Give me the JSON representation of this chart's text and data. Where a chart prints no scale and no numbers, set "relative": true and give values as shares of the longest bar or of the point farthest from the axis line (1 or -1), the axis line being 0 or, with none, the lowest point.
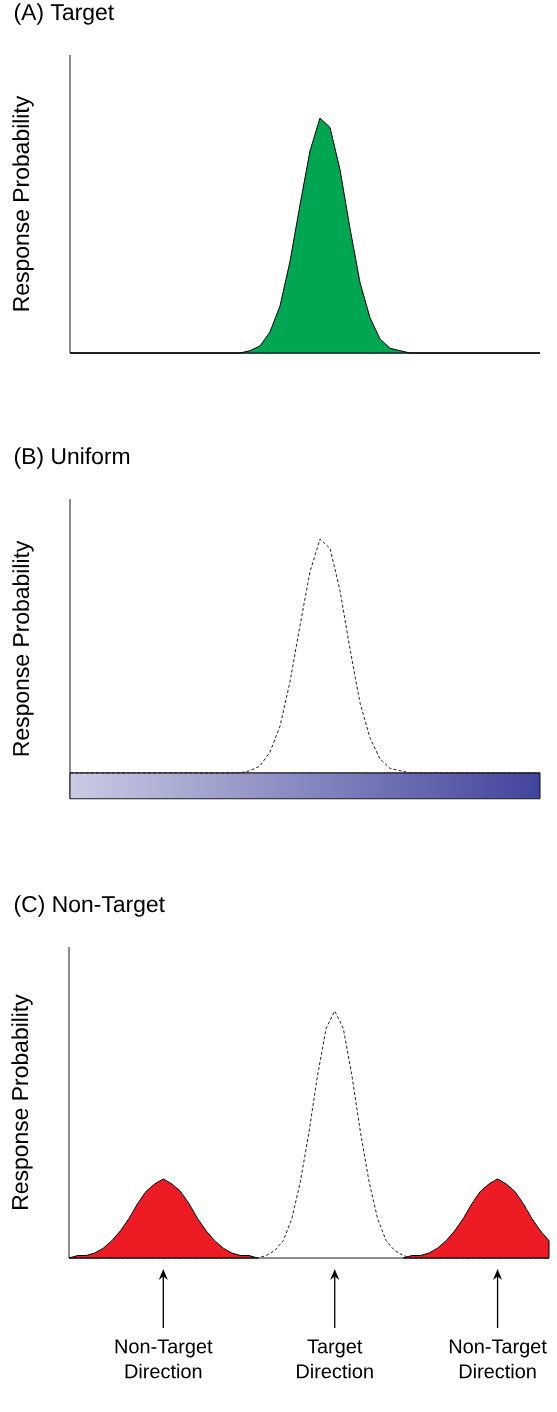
{
  "chart_data": [
    {
      "type": "area",
      "title": "(A) Target",
      "ylabel": "Response Probability",
      "relative": true,
      "categories": [
        null,
        null,
        null,
        null,
        null,
        null,
        null,
        null,
        null,
        null,
        null,
        null,
        null,
        null,
        null,
        null,
        null,
        null,
        null,
        null,
        null,
        null,
        null,
        null,
        null,
        null,
        null,
        null,
        null,
        null,
        null,
        null,
        null,
        null,
        null,
        null,
        null,
        null,
        null,
        null,
        null,
        null,
        null,
        null,
        null,
        null,
        null,
        null
      ],
      "series": [
        {
          "color": "#00a651",
          "values": [
            0,
            0,
            0,
            0,
            0,
            0,
            0,
            0,
            0,
            0,
            0,
            0,
            0,
            0,
            0,
            0,
            0,
            0,
            0.01,
            0.03,
            0.09,
            0.2,
            0.39,
            0.63,
            0.86,
            1,
            0.96,
            0.78,
            0.53,
            0.3,
            0.15,
            0.06,
            0.02,
            0.01,
            0,
            0,
            0,
            0,
            0,
            0,
            0,
            0,
            0,
            0,
            0,
            0,
            0,
            0
          ]
        }
      ]
    },
    {
      "type": "line",
      "title": "(B) Uniform",
      "ylabel": "Response Probability",
      "relative": true,
      "categories": [
        null,
        null,
        null,
        null,
        null,
        null,
        null,
        null,
        null,
        null,
        null,
        null,
        null,
        null,
        null,
        null,
        null,
        null,
        null,
        null,
        null,
        null,
        null,
        null,
        null,
        null,
        null,
        null,
        null,
        null,
        null,
        null,
        null,
        null,
        null,
        null,
        null,
        null,
        null,
        null,
        null,
        null,
        null,
        null,
        null,
        null,
        null,
        null
      ],
      "bands": [
        {
          "axis": "y",
          "from": -0.11,
          "to": 0,
          "color": "#2e3192"
        }
      ],
      "series": [
        {
          "color": "#231f20",
          "line_style": "dashed",
          "values": [
            0,
            0,
            0,
            0,
            0,
            0,
            0,
            0,
            0,
            0,
            0,
            0,
            0,
            0,
            0,
            0,
            0,
            0,
            0.01,
            0.03,
            0.09,
            0.2,
            0.39,
            0.63,
            0.86,
            1,
            0.96,
            0.78,
            0.53,
            0.3,
            0.15,
            0.06,
            0.02,
            0.01,
            0,
            0,
            0,
            0,
            0,
            0,
            0,
            0,
            0,
            0,
            0,
            0,
            0,
            0
          ]
        }
      ]
    },
    {
      "type": "line",
      "title": "(C) Non-Target",
      "ylabel": "Response Probability",
      "relative": true,
      "tick_labels": "x",
      "categories": [
        null,
        null,
        null,
        null,
        null,
        null,
        null,
        null,
        null,
        null,
        null,
        "Non-Target Direction",
        null,
        null,
        null,
        null,
        null,
        null,
        null,
        null,
        null,
        null,
        null,
        null,
        null,
        null,
        null,
        null,
        null,
        null,
        null,
        "Target Direction",
        null,
        null,
        null,
        null,
        null,
        null,
        null,
        null,
        null,
        null,
        null,
        null,
        null,
        null,
        null,
        null,
        null,
        null,
        "Non-Target Direction",
        null,
        null,
        null,
        null,
        null,
        null
      ],
      "series": [
        {
          "type": "area",
          "color": "#ed1c24",
          "values": [
            0,
            0.01,
            0.01,
            0.02,
            0.04,
            0.07,
            0.11,
            0.16,
            0.22,
            0.27,
            0.3,
            0.32,
            0.3,
            0.27,
            0.22,
            0.16,
            0.11,
            0.07,
            0.04,
            0.02,
            0.01,
            0.01,
            0,
            null,
            null,
            null,
            null,
            null,
            null,
            null,
            null,
            null,
            null,
            null,
            null,
            null,
            null,
            null,
            null,
            0,
            0.01,
            0.01,
            0.02,
            0.04,
            0.07,
            0.11,
            0.16,
            0.22,
            0.27,
            0.3,
            0.32,
            0.3,
            0.27,
            0.22,
            0.16,
            0.11,
            0.07
          ]
        },
        {
          "color": "#231f20",
          "line_style": "dashed",
          "values": [
            0,
            0,
            0,
            0,
            0,
            0,
            0,
            0,
            0,
            0,
            0,
            0,
            0,
            0,
            0,
            0,
            0,
            0,
            0,
            0,
            0,
            0,
            0,
            0.01,
            0.03,
            0.07,
            0.16,
            0.31,
            0.51,
            0.74,
            0.93,
            1,
            0.93,
            0.74,
            0.51,
            0.31,
            0.16,
            0.07,
            0.03,
            0.01,
            0,
            0,
            0,
            0,
            0,
            0,
            0,
            0,
            0,
            0,
            0,
            0,
            0,
            0,
            0,
            0,
            0
          ]
        }
      ]
    }
  ]
}
